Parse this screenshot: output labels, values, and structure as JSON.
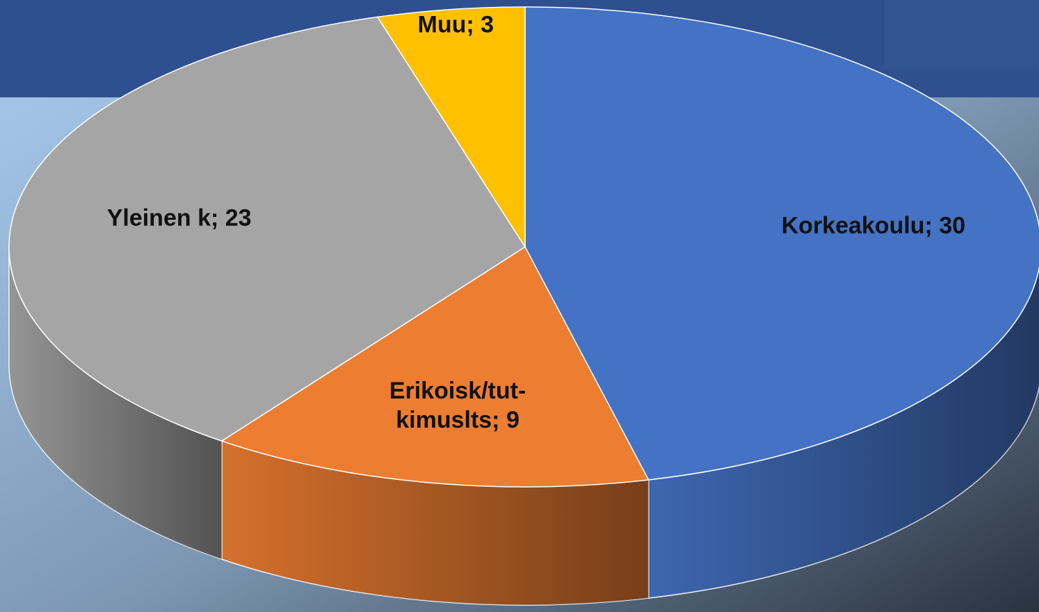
{
  "chart_data": {
    "type": "pie",
    "values": [
      30,
      9,
      23,
      3
    ],
    "value_labels": [
      "Korkeakoulu; 30",
      "Erikoisk/tut-kimuslts; 9",
      "Yleinen k; 23",
      "Muu; 3"
    ],
    "colors": [
      "#4472c4",
      "#ed7d31",
      "#a5a5a5",
      "#ffc000"
    ]
  }
}
